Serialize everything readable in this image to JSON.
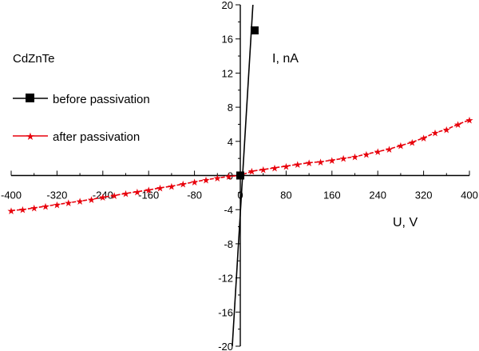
{
  "chart_data": {
    "type": "line",
    "annotation": "CdZnTe",
    "xlabel": "U, V",
    "ylabel": "I, nA",
    "xlim": [
      -400,
      400
    ],
    "ylim": [
      -20,
      20
    ],
    "x_ticks": [
      -400,
      -320,
      -240,
      -160,
      -80,
      0,
      80,
      160,
      240,
      320,
      400
    ],
    "y_ticks": [
      -20,
      -16,
      -12,
      -8,
      -4,
      0,
      4,
      8,
      12,
      16,
      20
    ],
    "grid": false,
    "legend_position": "left",
    "series": [
      {
        "name": "before passivation",
        "color": "#000000",
        "marker": "square",
        "line_x": [
          -14,
          22
        ],
        "line_y": [
          -20,
          20
        ],
        "points_x": [
          0,
          25
        ],
        "points_y": [
          0,
          17
        ]
      },
      {
        "name": "after passivation",
        "color": "#e8000b",
        "marker": "star",
        "x": [
          -400,
          -380,
          -360,
          -340,
          -320,
          -300,
          -280,
          -260,
          -240,
          -220,
          -200,
          -180,
          -160,
          -140,
          -120,
          -100,
          -80,
          -60,
          -40,
          -20,
          0,
          20,
          40,
          60,
          80,
          100,
          120,
          140,
          160,
          180,
          200,
          220,
          240,
          260,
          280,
          300,
          320,
          340,
          360,
          380,
          400
        ],
        "y": [
          -4.1,
          -4.0,
          -3.8,
          -3.6,
          -3.4,
          -3.2,
          -3.0,
          -2.8,
          -2.55,
          -2.35,
          -2.1,
          -1.9,
          -1.7,
          -1.45,
          -1.25,
          -1.0,
          -0.75,
          -0.5,
          -0.3,
          -0.1,
          0.0,
          0.5,
          0.7,
          0.9,
          1.1,
          1.3,
          1.5,
          1.6,
          1.8,
          2.0,
          2.2,
          2.5,
          2.8,
          3.1,
          3.5,
          3.9,
          4.4,
          5.0,
          5.4,
          6.0,
          6.5
        ]
      }
    ]
  }
}
